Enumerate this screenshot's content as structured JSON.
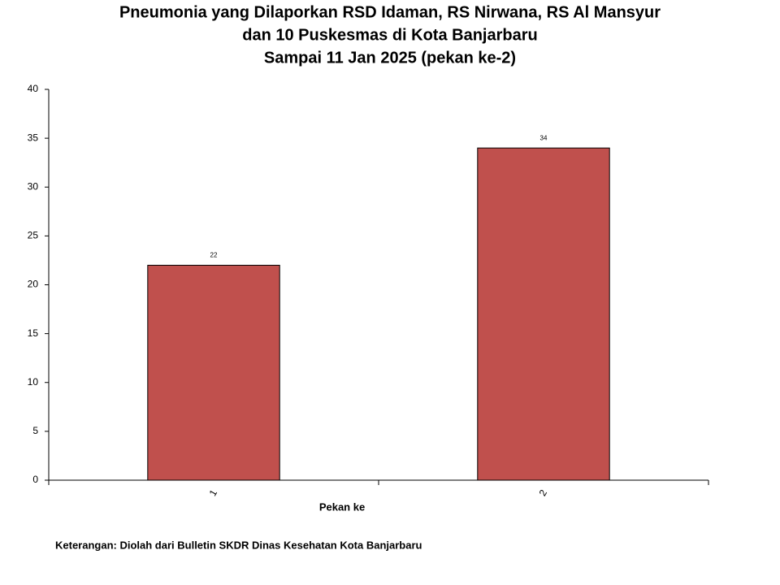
{
  "chart_data": {
    "type": "bar",
    "title": [
      "Pneumonia yang Dilaporkan RSD Idaman, RS Nirwana, RS Al Mansyur",
      "dan 10 Puskesmas di Kota Banjarbaru",
      "Sampai 11 Jan 2025 (pekan ke-2)"
    ],
    "categories": [
      "1",
      "2"
    ],
    "values": [
      22,
      34
    ],
    "color": "#c0504d",
    "ylim": [
      0,
      40
    ],
    "yticks": [
      0,
      5,
      10,
      15,
      20,
      25,
      30,
      35,
      40
    ],
    "xlabel": "Pekan ke",
    "note": "Keterangan: Diolah dari Bulletin SKDR Dinas Kesehatan Kota Banjarbaru"
  }
}
